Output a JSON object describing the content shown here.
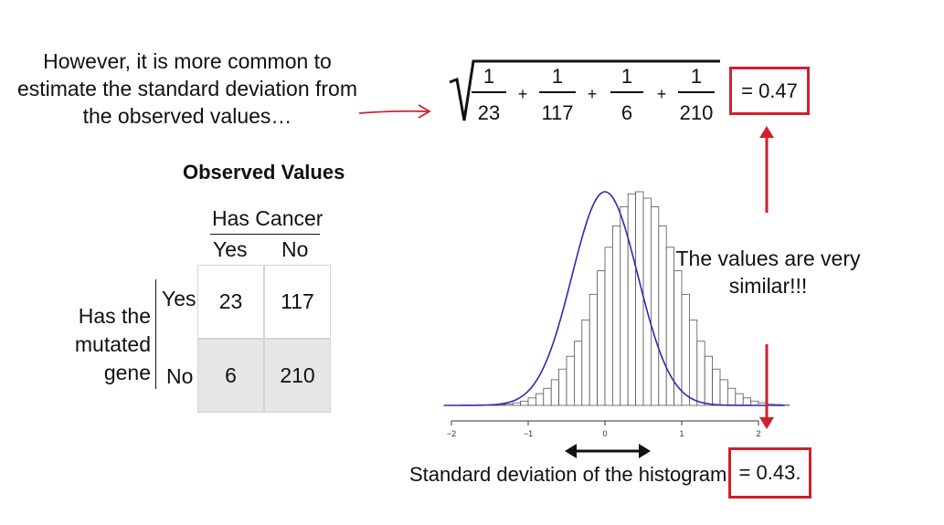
{
  "intro": {
    "lines": [
      "However, it is more common to",
      "estimate the standard deviation from",
      "the observed values…"
    ]
  },
  "formula": {
    "denominators": [
      "23",
      "117",
      "6",
      "210"
    ],
    "numerator": "1",
    "operator": "+"
  },
  "result_top": "= 0.47",
  "table": {
    "title": "Observed Values",
    "col_group": "Has Cancer",
    "cols": [
      "Yes",
      "No"
    ],
    "row_group_lines": [
      "Has the",
      "mutated",
      "gene"
    ],
    "rows": [
      {
        "label": "Yes",
        "values": [
          "23",
          "117"
        ]
      },
      {
        "label": "No",
        "values": [
          "6",
          "210"
        ]
      }
    ]
  },
  "similar_note": [
    "The values are very",
    "similar!!!"
  ],
  "histogram": {
    "x_ticks": [
      "−2",
      "−1",
      "0",
      "1",
      "2"
    ],
    "caption": "Standard deviation of the histogram",
    "result": "= 0.43.",
    "sd": 0.43,
    "curve_color": "#2b2bb5"
  },
  "colors": {
    "accent": "#d0202e",
    "shade": "#e6e6e6"
  },
  "chart_data": {
    "type": "bar",
    "title": "",
    "xlabel": "",
    "ylabel": "",
    "xlim": [
      -2,
      2
    ],
    "bin_width": 0.1,
    "bins_start": -2,
    "values": [
      0,
      0,
      0,
      0,
      0,
      0.002,
      0.004,
      0.006,
      0.012,
      0.02,
      0.035,
      0.055,
      0.08,
      0.12,
      0.17,
      0.23,
      0.3,
      0.4,
      0.52,
      0.63,
      0.74,
      0.84,
      0.93,
      0.99,
      1.0,
      0.97,
      0.93,
      0.84,
      0.74,
      0.63,
      0.52,
      0.4,
      0.3,
      0.23,
      0.17,
      0.12,
      0.08,
      0.055,
      0.035,
      0.02,
      0.012,
      0.006,
      0.004,
      0.002,
      0,
      0
    ]
  }
}
